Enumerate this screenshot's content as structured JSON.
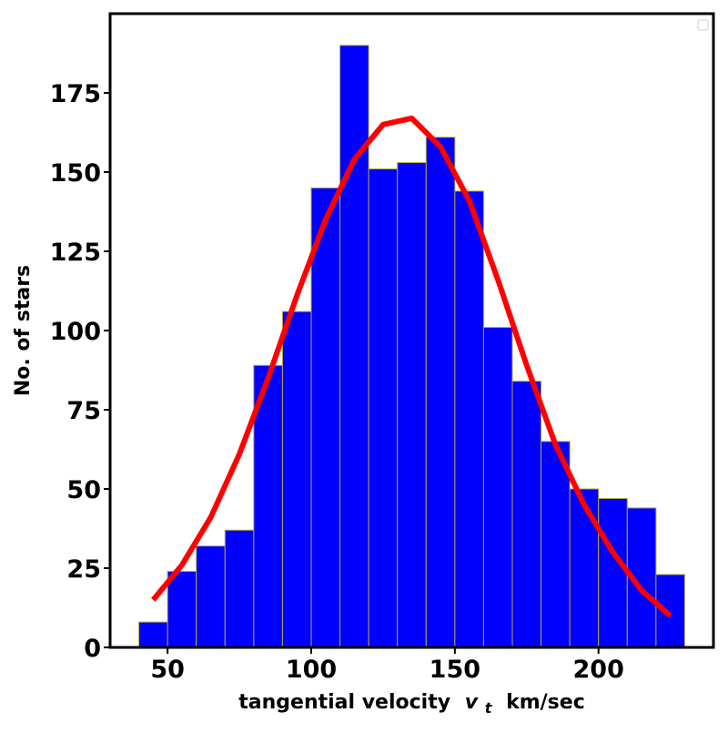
{
  "chart_data": {
    "type": "bar",
    "title": "",
    "xlabel": "tangential velocity",
    "xlabel_symbol": "v",
    "xlabel_subscript": "t",
    "xlabel_unit": "km/sec",
    "ylabel": "No. of stars",
    "xlim": [
      30,
      240
    ],
    "ylim": [
      0,
      200
    ],
    "x_ticks": [
      50,
      100,
      150,
      200
    ],
    "y_ticks": [
      0,
      25,
      50,
      75,
      100,
      125,
      150,
      175
    ],
    "grid": false,
    "legend": "top-right (empty)",
    "histogram": {
      "bin_edges": [
        40,
        50,
        60,
        70,
        80,
        90,
        100,
        110,
        120,
        130,
        140,
        150,
        160,
        170,
        180,
        190,
        200,
        210,
        220,
        230
      ],
      "counts": [
        8,
        24,
        32,
        37,
        89,
        106,
        145,
        190,
        151,
        153,
        161,
        144,
        101,
        84,
        65,
        50,
        47,
        44,
        23
      ],
      "fill_color": "#0000ff",
      "edge_color": "#b5a642"
    },
    "fit_curve": {
      "x": [
        45,
        55,
        65,
        75,
        85,
        95,
        105,
        115,
        125,
        135,
        145,
        155,
        165,
        175,
        185,
        195,
        205,
        215,
        225
      ],
      "y": [
        15,
        26,
        41,
        61,
        85,
        111,
        135,
        154,
        165,
        167,
        158,
        141,
        116,
        89,
        64,
        45,
        30,
        18,
        10
      ],
      "color": "#ff0000"
    }
  }
}
